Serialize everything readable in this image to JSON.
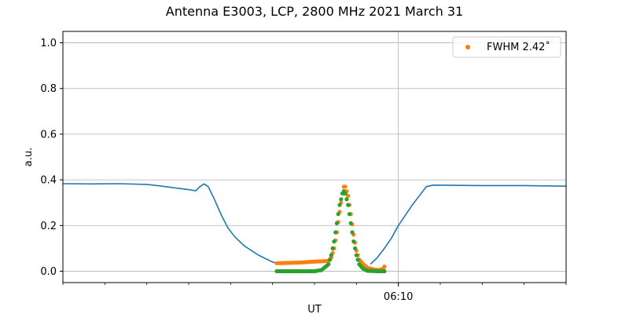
{
  "chart_data": {
    "type": "line",
    "title": "Antenna E3003, LCP, 2800 MHz 2021 March 31",
    "xlabel": "UT",
    "ylabel": "a.u.",
    "ylim": [
      -0.05,
      1.05
    ],
    "yticks": [
      0.0,
      0.2,
      0.4,
      0.6,
      0.8,
      1.0
    ],
    "ytick_labels": [
      "0.0",
      "0.2",
      "0.4",
      "0.6",
      "0.8",
      "1.0"
    ],
    "xlim": [
      "06:06:00",
      "06:12:00"
    ],
    "xticks": [
      {
        "value": "06:10:00",
        "label": "06:10"
      }
    ],
    "grid": true,
    "legend_position": "top-right",
    "legend": [
      {
        "label": "FWHM 2.42$^\\circ$",
        "display": "FWHM 2.42˚",
        "color": "#ff7f0e",
        "marker": "point"
      }
    ],
    "colors": {
      "line": "#1f77b4",
      "orange": "#ff7f0e",
      "green": "#2ca02c"
    },
    "series": [
      {
        "type": "line",
        "color": "#1f77b4",
        "points": [
          [
            "06:06:00",
            0.383
          ],
          [
            "06:06:20",
            0.382
          ],
          [
            "06:06:40",
            0.383
          ],
          [
            "06:07:00",
            0.38
          ],
          [
            "06:07:10",
            0.373
          ],
          [
            "06:07:20",
            0.365
          ],
          [
            "06:07:30",
            0.357
          ],
          [
            "06:07:35",
            0.352
          ],
          [
            "06:07:38",
            0.37
          ],
          [
            "06:07:41",
            0.382
          ],
          [
            "06:07:44",
            0.37
          ],
          [
            "06:07:48",
            0.32
          ],
          [
            "06:07:53",
            0.25
          ],
          [
            "06:07:58",
            0.19
          ],
          [
            "06:08:03",
            0.15
          ],
          [
            "06:08:10",
            0.11
          ],
          [
            "06:08:20",
            0.07
          ],
          [
            "06:08:30",
            0.04
          ],
          [
            "06:08:33",
            0.035
          ]
        ]
      },
      {
        "type": "line",
        "color": "#1f77b4",
        "points": [
          [
            "06:09:40",
            0.03
          ],
          [
            "06:09:45",
            0.06
          ],
          [
            "06:09:50",
            0.1
          ],
          [
            "06:09:55",
            0.145
          ],
          [
            "06:10:00",
            0.2
          ],
          [
            "06:10:10",
            0.29
          ],
          [
            "06:10:20",
            0.37
          ],
          [
            "06:10:25",
            0.377
          ],
          [
            "06:11:00",
            0.375
          ],
          [
            "06:11:30",
            0.375
          ],
          [
            "06:12:00",
            0.372
          ]
        ]
      },
      {
        "type": "scatter",
        "color": "#ff7f0e",
        "points": [
          [
            "06:08:33",
            0.035
          ],
          [
            "06:08:40",
            0.036
          ],
          [
            "06:08:50",
            0.038
          ],
          [
            "06:09:00",
            0.042
          ],
          [
            "06:09:10",
            0.045
          ],
          [
            "06:09:12",
            0.06
          ],
          [
            "06:09:14",
            0.1
          ],
          [
            "06:09:16",
            0.17
          ],
          [
            "06:09:18",
            0.26
          ],
          [
            "06:09:20",
            0.34
          ],
          [
            "06:09:21",
            0.37
          ],
          [
            "06:09:22",
            0.37
          ],
          [
            "06:09:24",
            0.33
          ],
          [
            "06:09:26",
            0.25
          ],
          [
            "06:09:28",
            0.16
          ],
          [
            "06:09:30",
            0.09
          ],
          [
            "06:09:32",
            0.05
          ],
          [
            "06:09:35",
            0.03
          ],
          [
            "06:09:38",
            0.015
          ],
          [
            "06:09:42",
            0.008
          ],
          [
            "06:09:46",
            0.005
          ],
          [
            "06:09:49",
            0.01
          ],
          [
            "06:09:50",
            0.02
          ]
        ]
      },
      {
        "type": "scatter",
        "color": "#2ca02c",
        "points": [
          [
            "06:08:33",
            0.0
          ],
          [
            "06:08:45",
            0.0
          ],
          [
            "06:09:00",
            0.0
          ],
          [
            "06:09:05",
            0.005
          ],
          [
            "06:09:10",
            0.03
          ],
          [
            "06:09:12",
            0.07
          ],
          [
            "06:09:14",
            0.13
          ],
          [
            "06:09:16",
            0.21
          ],
          [
            "06:09:18",
            0.29
          ],
          [
            "06:09:20",
            0.34
          ],
          [
            "06:09:21",
            0.35
          ],
          [
            "06:09:22",
            0.34
          ],
          [
            "06:09:24",
            0.29
          ],
          [
            "06:09:26",
            0.21
          ],
          [
            "06:09:28",
            0.13
          ],
          [
            "06:09:30",
            0.07
          ],
          [
            "06:09:32",
            0.03
          ],
          [
            "06:09:35",
            0.01
          ],
          [
            "06:09:38",
            0.002
          ],
          [
            "06:09:45",
            0.0
          ],
          [
            "06:09:50",
            0.0
          ]
        ]
      }
    ]
  }
}
